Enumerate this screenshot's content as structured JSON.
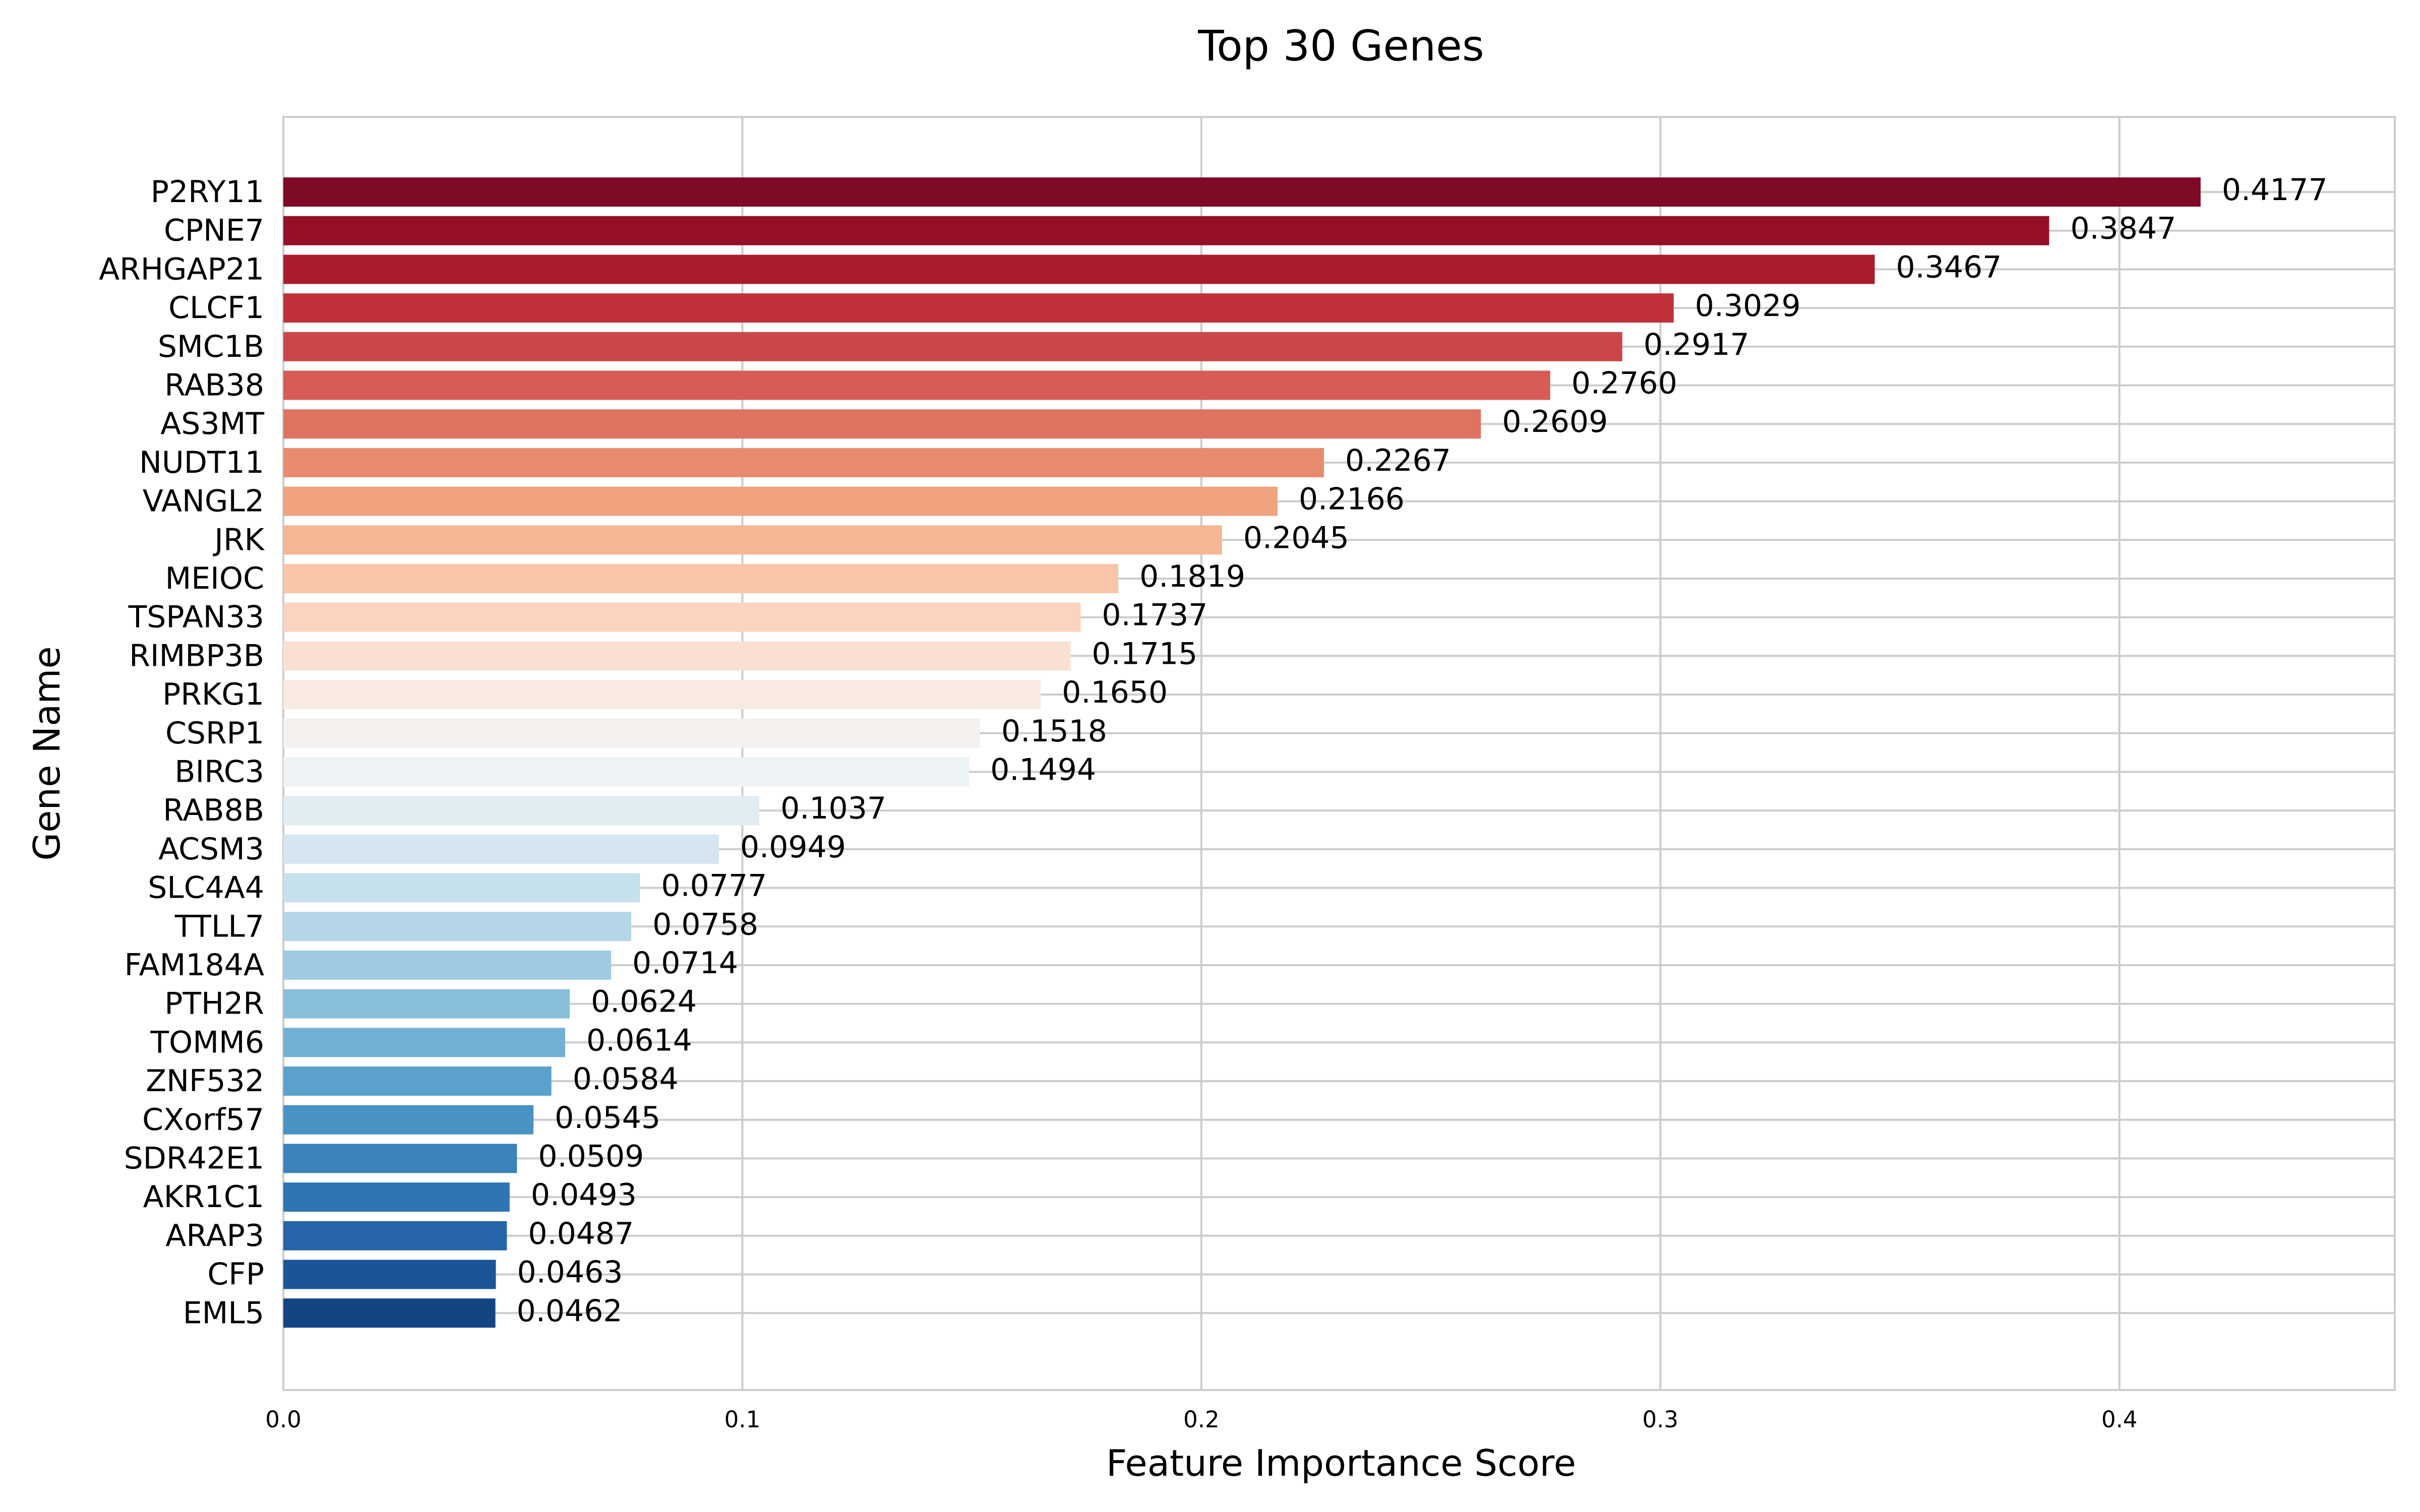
{
  "chart_data": {
    "type": "bar",
    "orientation": "horizontal",
    "title": "Top 30 Genes",
    "xlabel": "Feature Importance Score",
    "ylabel": "Gene Name",
    "xlim": [
      0,
      0.46
    ],
    "xticks": [
      "0.0",
      "0.1",
      "0.2",
      "0.3",
      "0.4"
    ],
    "grid": true,
    "categories": [
      "P2RY11",
      "CPNE7",
      "ARHGAP21",
      "CLCF1",
      "SMC1B",
      "RAB38",
      "AS3MT",
      "NUDT11",
      "VANGL2",
      "JRK",
      "MEIOC",
      "TSPAN33",
      "RIMBP3B",
      "PRKG1",
      "CSRP1",
      "BIRC3",
      "RAB8B",
      "ACSM3",
      "SLC4A4",
      "TTLL7",
      "FAM184A",
      "PTH2R",
      "TOMM6",
      "ZNF532",
      "CXorf57",
      "SDR42E1",
      "AKR1C1",
      "ARAP3",
      "CFP",
      "EML5"
    ],
    "values": [
      0.4177,
      0.3847,
      0.3467,
      0.3029,
      0.2917,
      0.276,
      0.2609,
      0.2267,
      0.2166,
      0.2045,
      0.1819,
      0.1737,
      0.1715,
      0.165,
      0.1518,
      0.1494,
      0.1037,
      0.0949,
      0.0777,
      0.0758,
      0.0714,
      0.0624,
      0.0614,
      0.0584,
      0.0545,
      0.0509,
      0.0493,
      0.0487,
      0.0463,
      0.0462
    ],
    "value_labels": [
      "0.4177",
      "0.3847",
      "0.3467",
      "0.3029",
      "0.2917",
      "0.2760",
      "0.2609",
      "0.2267",
      "0.2166",
      "0.2045",
      "0.1819",
      "0.1737",
      "0.1715",
      "0.1650",
      "0.1518",
      "0.1494",
      "0.1037",
      "0.0949",
      "0.0777",
      "0.0758",
      "0.0714",
      "0.0624",
      "0.0614",
      "0.0584",
      "0.0545",
      "0.0509",
      "0.0493",
      "0.0487",
      "0.0463",
      "0.0462"
    ],
    "colors": [
      "#7f0a25",
      "#950f29",
      "#ac1a2e",
      "#c1303b",
      "#cb4648",
      "#d65c55",
      "#df7361",
      "#e88b6e",
      "#f1a27f",
      "#f6b693",
      "#f9c5a9",
      "#fad4be",
      "#fae0d2",
      "#f8eae3",
      "#f4f1ee",
      "#edf2f5",
      "#e1ecf3",
      "#d5e6f0",
      "#c7e0ed",
      "#b4d6e7",
      "#9fcae1",
      "#89bedb",
      "#72b1d4",
      "#5aa2cc",
      "#4892c4",
      "#3a83bc",
      "#2f74b3",
      "#2565a8",
      "#1b5597",
      "#144582"
    ]
  }
}
